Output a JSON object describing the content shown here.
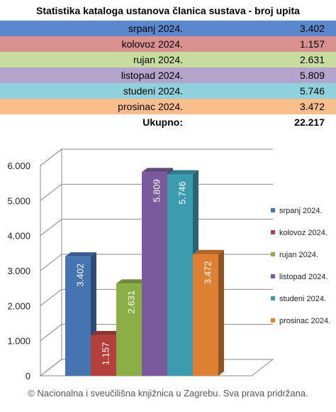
{
  "title": "Statistika kataloga ustanova članica sustava - broj upita",
  "table": {
    "rows": [
      {
        "label": "srpanj 2024.",
        "value": "3.402",
        "color": "#5B87CC"
      },
      {
        "label": "kolovoz 2024.",
        "value": "1.157",
        "color": "#D9918F"
      },
      {
        "label": "rujan 2024.",
        "value": "2.631",
        "color": "#C8DC9F"
      },
      {
        "label": "listopad 2024.",
        "value": "5.809",
        "color": "#B4A3CA"
      },
      {
        "label": "studeni 2024.",
        "value": "5.746",
        "color": "#8FD2DE"
      },
      {
        "label": "prosinac 2024.",
        "value": "3.472",
        "color": "#F9BE8C"
      }
    ],
    "total_label": "Ukupno:",
    "total_value": "22.217"
  },
  "chart_data": {
    "type": "bar",
    "categories": [
      "srpanj 2024.",
      "kolovoz 2024.",
      "rujan 2024.",
      "listopad 2024.",
      "studeni 2024.",
      "prosinac 2024."
    ],
    "values": [
      3402,
      1157,
      2631,
      5809,
      5746,
      3472
    ],
    "value_labels": [
      "3.402",
      "1.157",
      "2.631",
      "5.809",
      "5.746",
      "3.472"
    ],
    "colors": [
      "#4574B1",
      "#B3403D",
      "#8BAE46",
      "#7A5A9C",
      "#3D9BB0",
      "#DE8034"
    ],
    "ylim": [
      0,
      6000
    ],
    "yticks": [
      0,
      1000,
      2000,
      3000,
      4000,
      5000,
      6000
    ],
    "ytick_labels": [
      "0",
      "1.000",
      "2.000",
      "3.000",
      "4.000",
      "5.000",
      "6.000"
    ],
    "grid": true,
    "legend_position": "right",
    "three_d": true
  },
  "footer": "© Nacionalna i sveučilišna knjižnica u Zagrebu. Sva prava pridržana."
}
